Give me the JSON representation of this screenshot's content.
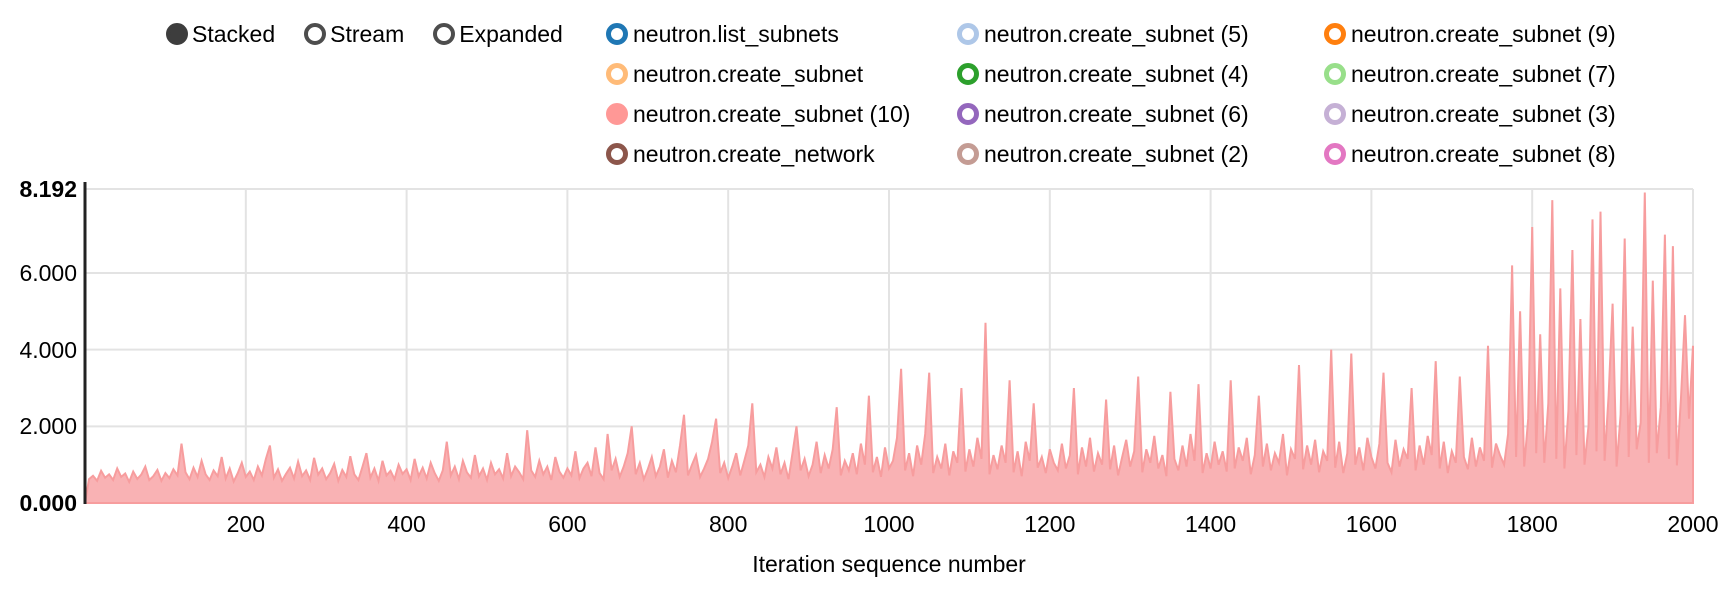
{
  "controls": {
    "group": "chart-mode",
    "options": [
      {
        "label": "Stacked",
        "selected": true
      },
      {
        "label": "Stream",
        "selected": false
      },
      {
        "label": "Expanded",
        "selected": false
      }
    ]
  },
  "legend": {
    "columns": [
      [
        {
          "label": "neutron.list_subnets",
          "color": "#1f77b4",
          "filled": false
        },
        {
          "label": "neutron.create_subnet",
          "color": "#ffbb78",
          "filled": false
        },
        {
          "label": "neutron.create_subnet (10)",
          "color": "#ff9896",
          "filled": true
        },
        {
          "label": "neutron.create_network",
          "color": "#8c564b",
          "filled": false
        }
      ],
      [
        {
          "label": "neutron.create_subnet (5)",
          "color": "#aec7e8",
          "filled": false
        },
        {
          "label": "neutron.create_subnet (4)",
          "color": "#2ca02c",
          "filled": false
        },
        {
          "label": "neutron.create_subnet (6)",
          "color": "#9467bd",
          "filled": false
        },
        {
          "label": "neutron.create_subnet (2)",
          "color": "#c49c94",
          "filled": false
        }
      ],
      [
        {
          "label": "neutron.create_subnet (9)",
          "color": "#ff7f0e",
          "filled": false
        },
        {
          "label": "neutron.create_subnet (7)",
          "color": "#98df8a",
          "filled": false
        },
        {
          "label": "neutron.create_subnet (3)",
          "color": "#c5b0d5",
          "filled": false
        },
        {
          "label": "neutron.create_subnet (8)",
          "color": "#e377c2",
          "filled": false
        }
      ]
    ]
  },
  "chart_data": {
    "type": "area",
    "title": "",
    "xlabel": "Iteration sequence number",
    "ylabel": "",
    "xlim": [
      0,
      2000
    ],
    "ylim": [
      0,
      8.192
    ],
    "xticks": [
      200,
      400,
      600,
      800,
      1000,
      1200,
      1400,
      1600,
      1800,
      2000
    ],
    "yticks": [
      {
        "v": 0,
        "label": "0.000",
        "bold": true
      },
      {
        "v": 2,
        "label": "2.000",
        "bold": false
      },
      {
        "v": 4,
        "label": "4.000",
        "bold": false
      },
      {
        "v": 6,
        "label": "6.000",
        "bold": false
      },
      {
        "v": 8.192,
        "label": "8.192",
        "bold": true
      }
    ],
    "grid": true,
    "legend_position": "top",
    "series": [
      {
        "name": "neutron.create_subnet (10)",
        "color": "#ff9896",
        "fill": "#f9b2b4",
        "stroke": "#f79d9e",
        "x_step": 5,
        "x_unit": "iteration",
        "values": [
          0.62,
          0.71,
          0.58,
          0.84,
          0.66,
          0.75,
          0.6,
          0.9,
          0.68,
          0.77,
          0.55,
          0.82,
          0.63,
          0.74,
          0.95,
          0.6,
          0.7,
          0.86,
          0.58,
          0.78,
          0.65,
          0.88,
          0.72,
          1.55,
          0.8,
          0.62,
          0.92,
          0.68,
          1.1,
          0.75,
          0.6,
          0.85,
          0.7,
          1.2,
          0.64,
          0.9,
          0.56,
          0.78,
          1.05,
          0.68,
          0.82,
          0.6,
          0.95,
          0.72,
          1.15,
          1.5,
          0.66,
          0.88,
          0.58,
          0.76,
          0.92,
          0.64,
          1.08,
          0.7,
          0.85,
          0.6,
          1.18,
          0.74,
          0.9,
          0.62,
          0.78,
          1.02,
          0.58,
          0.86,
          0.68,
          1.22,
          0.75,
          0.6,
          0.94,
          1.3,
          0.66,
          0.9,
          0.58,
          1.1,
          0.72,
          0.84,
          0.62,
          1.0,
          0.76,
          0.88,
          0.6,
          1.15,
          0.7,
          0.92,
          0.64,
          1.05,
          0.78,
          0.58,
          0.85,
          1.6,
          0.72,
          0.95,
          0.62,
          1.1,
          0.8,
          0.66,
          1.25,
          0.7,
          0.9,
          0.6,
          1.05,
          0.75,
          0.88,
          0.64,
          1.3,
          0.7,
          0.95,
          0.8,
          0.62,
          1.9,
          0.85,
          0.68,
          1.1,
          0.75,
          0.95,
          0.6,
          1.2,
          0.82,
          0.66,
          0.9,
          0.72,
          1.35,
          0.65,
          0.9,
          1.05,
          0.7,
          1.45,
          0.78,
          0.62,
          1.8,
          0.85,
          1.15,
          0.68,
          0.95,
          1.3,
          2.0,
          0.75,
          1.05,
          0.62,
          0.88,
          1.2,
          0.7,
          0.95,
          1.4,
          0.66,
          1.1,
          0.8,
          1.5,
          2.3,
          0.72,
          1.0,
          1.25,
          0.68,
          0.9,
          1.15,
          1.6,
          2.2,
          0.78,
          1.05,
          0.65,
          0.95,
          1.3,
          0.72,
          1.1,
          1.5,
          2.6,
          0.8,
          1.0,
          0.68,
          1.2,
          0.9,
          1.45,
          0.75,
          1.05,
          0.62,
          1.3,
          2.0,
          0.85,
          1.15,
          0.7,
          1.0,
          1.6,
          0.78,
          1.25,
          0.9,
          1.4,
          2.5,
          0.72,
          1.1,
          0.85,
          1.3,
          0.75,
          1.55,
          1.0,
          2.8,
          0.8,
          1.2,
          0.68,
          1.45,
          0.9,
          1.1,
          1.7,
          3.5,
          0.85,
          1.3,
          0.7,
          1.5,
          1.0,
          1.8,
          3.4,
          0.78,
          1.2,
          0.9,
          1.55,
          0.72,
          1.35,
          1.05,
          3.0,
          0.82,
          1.4,
          0.95,
          1.7,
          1.15,
          4.7,
          0.75,
          1.25,
          0.88,
          1.5,
          1.05,
          3.2,
          0.8,
          1.35,
          0.7,
          1.6,
          1.1,
          2.6,
          0.92,
          1.2,
          0.78,
          1.4,
          1.05,
          0.85,
          1.55,
          0.9,
          1.25,
          3.0,
          0.75,
          1.45,
          0.95,
          1.7,
          0.82,
          1.3,
          1.0,
          2.7,
          0.88,
          1.5,
          0.72,
          1.2,
          1.65,
          0.95,
          1.35,
          3.3,
          0.8,
          1.4,
          1.05,
          1.75,
          0.9,
          1.25,
          0.7,
          2.9,
          1.15,
          0.85,
          1.5,
          0.95,
          1.8,
          1.1,
          3.1,
          0.78,
          1.3,
          0.9,
          1.6,
          1.0,
          1.35,
          0.82,
          3.2,
          0.9,
          1.45,
          1.1,
          1.7,
          0.75,
          1.25,
          2.8,
          0.95,
          1.55,
          0.85,
          1.3,
          1.05,
          1.8,
          0.72,
          1.4,
          1.15,
          3.6,
          0.88,
          1.5,
          1.0,
          1.65,
          0.8,
          1.35,
          1.1,
          4.0,
          0.92,
          1.6,
          0.78,
          1.3,
          3.9,
          1.0,
          1.45,
          0.85,
          1.7,
          1.2,
          0.9,
          1.55,
          3.4,
          1.05,
          0.8,
          1.65,
          0.95,
          1.4,
          1.15,
          3.0,
          0.85,
          1.5,
          1.0,
          1.75,
          1.25,
          3.7,
          0.9,
          1.6,
          0.78,
          1.35,
          1.05,
          3.3,
          1.2,
          0.88,
          1.7,
          0.95,
          1.45,
          1.1,
          4.1,
          0.92,
          1.55,
          1.25,
          1.0,
          1.8,
          6.2,
          1.2,
          5.0,
          0.95,
          2.2,
          7.2,
          1.3,
          4.4,
          1.05,
          2.6,
          7.9,
          1.15,
          5.6,
          0.9,
          2.4,
          6.6,
          1.25,
          4.8,
          1.0,
          2.0,
          7.4,
          1.35,
          7.6,
          1.1,
          2.8,
          5.2,
          0.95,
          2.3,
          6.9,
          1.2,
          4.6,
          1.4,
          2.1,
          8.1,
          1.05,
          5.8,
          1.3,
          2.5,
          7.0,
          1.15,
          6.7,
          0.98,
          2.7,
          4.9,
          2.2,
          4.1
        ]
      }
    ]
  }
}
